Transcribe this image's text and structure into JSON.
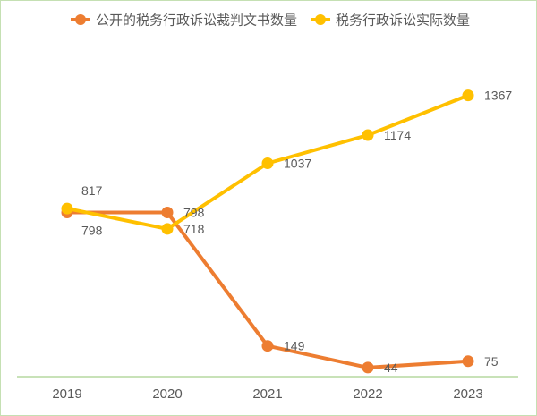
{
  "chart_data": {
    "type": "line",
    "categories": [
      "2019",
      "2020",
      "2021",
      "2022",
      "2023"
    ],
    "series": [
      {
        "name": "公开的税务行政诉讼裁判文书数量",
        "color": "#ED7D31",
        "values": [
          798,
          798,
          149,
          44,
          75
        ]
      },
      {
        "name": "税务行政诉讼实际数量",
        "color": "#FFC000",
        "values": [
          817,
          718,
          1037,
          1174,
          1367
        ]
      }
    ],
    "ylim": [
      0,
      1600
    ],
    "grid": false,
    "legend": "top-center",
    "data_labels": true
  },
  "colors": {
    "background": "#FFFFFF",
    "border": "#C5E0B3",
    "axis": "#A8D08D",
    "text": "#595959"
  }
}
